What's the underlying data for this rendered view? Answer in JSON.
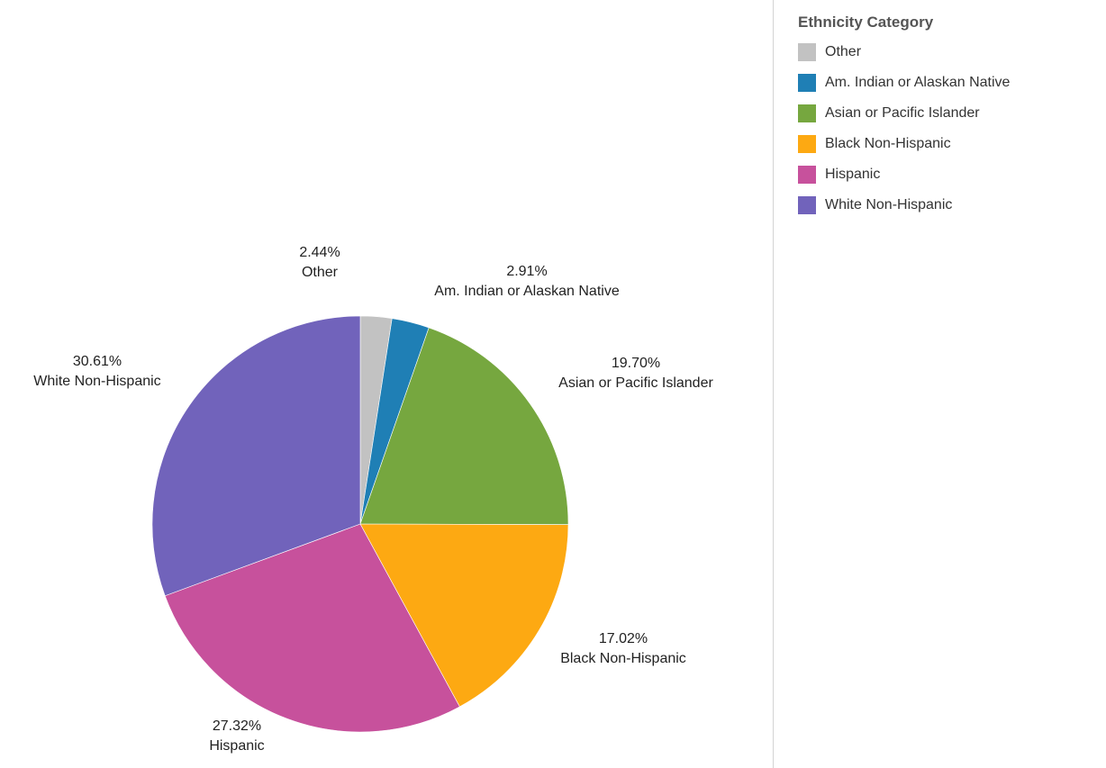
{
  "legend": {
    "title": "Ethnicity Category"
  },
  "chart_data": {
    "type": "pie",
    "title": "",
    "legend_title": "Ethnicity Category",
    "legend_position": "right",
    "start_angle_deg": 0,
    "direction": "clockwise",
    "slices": [
      {
        "label": "Other",
        "value": 2.44,
        "display": "2.44%",
        "color": "#c2c2c2"
      },
      {
        "label": "Am. Indian or Alaskan Native",
        "value": 2.91,
        "display": "2.91%",
        "color": "#1f7fb5"
      },
      {
        "label": "Asian or Pacific Islander",
        "value": 19.7,
        "display": "19.70%",
        "color": "#76a73f"
      },
      {
        "label": "Black Non-Hispanic",
        "value": 17.02,
        "display": "17.02%",
        "color": "#fda912"
      },
      {
        "label": "Hispanic",
        "value": 27.32,
        "display": "27.32%",
        "color": "#c7519c"
      },
      {
        "label": "White Non-Hispanic",
        "value": 30.61,
        "display": "30.61%",
        "color": "#7163bb"
      }
    ]
  }
}
